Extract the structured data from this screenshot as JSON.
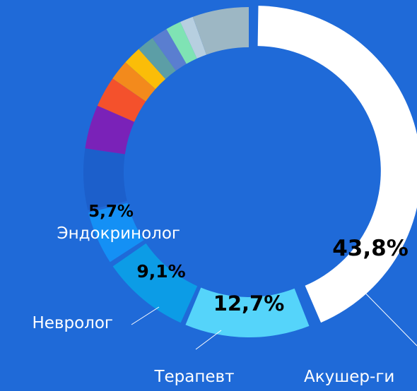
{
  "chart_data": {
    "type": "donut",
    "categories": [
      "Акушер-ги",
      "Терапевт",
      "Невролог",
      "Эндокринолог",
      null,
      null,
      null,
      null,
      null,
      null,
      null,
      null,
      null,
      null
    ],
    "values": [
      43.8,
      12.7,
      9.1,
      5.7,
      6,
      4.3,
      3,
      2,
      1.8,
      1.7,
      1.6,
      1.5,
      1.3,
      5.5
    ],
    "value_labels": [
      "43,8%",
      "12,7%",
      "9,1%",
      "5,7%",
      null,
      null,
      null,
      null,
      null,
      null,
      null,
      null,
      null,
      null
    ],
    "colors": [
      "#ffffff",
      "#55d4fa",
      "#0c9ce6",
      "#1490f5",
      "#1c5fcb",
      "#7a22b8",
      "#f4512c",
      "#f38a1c",
      "#fbbd08",
      "#5c9ea6",
      "#5a7ed0",
      "#7fe3b4",
      "#b7cfe0",
      "#9db7c4"
    ]
  }
}
